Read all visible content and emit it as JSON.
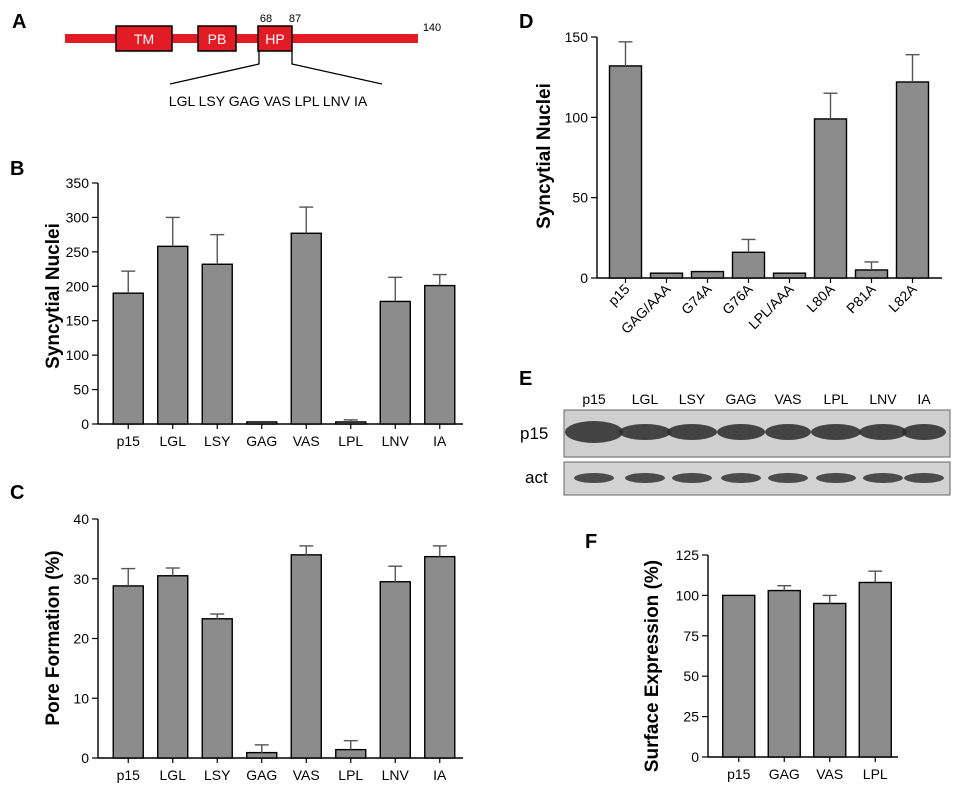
{
  "panels": {
    "A": {
      "letter": "A",
      "domains": [
        {
          "label": "TM",
          "color": "#e21b24"
        },
        {
          "label": "PB",
          "color": "#e21b24"
        },
        {
          "label": "HP",
          "color": "#e21b24"
        }
      ],
      "positions": [
        "68",
        "87",
        "140"
      ],
      "sequence": "LGL LSY GAG VAS LPL LNV IA",
      "line_color": "#e21b24"
    },
    "B": {
      "letter": "B"
    },
    "C": {
      "letter": "C"
    },
    "D": {
      "letter": "D"
    },
    "E": {
      "letter": "E",
      "lanes": [
        "p15",
        "LGL",
        "LSY",
        "GAG",
        "VAS",
        "LPL",
        "LNV",
        "IA"
      ],
      "rows": [
        "p15",
        "act"
      ]
    },
    "F": {
      "letter": "F"
    }
  },
  "chart_data": [
    {
      "id": "B",
      "type": "bar",
      "categories": [
        "p15",
        "LGL",
        "LSY",
        "GAG",
        "VAS",
        "LPL",
        "LNV",
        "IA"
      ],
      "values": [
        190,
        258,
        232,
        3,
        277,
        3,
        178,
        201
      ],
      "errors": [
        32,
        42,
        43,
        0,
        38,
        3,
        35,
        16
      ],
      "ylabel": "Syncytial Nuclei",
      "ylim": [
        0,
        350
      ],
      "yticks": [
        0,
        50,
        100,
        150,
        200,
        250,
        300,
        350
      ],
      "ytick_labels": [
        "0",
        "50",
        "100",
        "150",
        "200",
        "250",
        "300",
        "350"
      ],
      "bar_color": "#8c8c8c",
      "grid": false
    },
    {
      "id": "C",
      "type": "bar",
      "categories": [
        "p15",
        "LGL",
        "LSY",
        "GAG",
        "VAS",
        "LPL",
        "LNV",
        "IA"
      ],
      "values": [
        28.8,
        30.5,
        23.3,
        0.9,
        34.0,
        1.4,
        29.5,
        33.7
      ],
      "errors": [
        2.9,
        1.3,
        0.8,
        1.3,
        1.5,
        1.5,
        2.6,
        1.8
      ],
      "ylabel": "Pore Formation (%)",
      "ylim": [
        0,
        40
      ],
      "yticks": [
        0,
        10,
        20,
        30,
        40
      ],
      "ytick_labels": [
        "0",
        "10",
        "20",
        "30",
        "40"
      ],
      "bar_color": "#8c8c8c",
      "grid": false
    },
    {
      "id": "D",
      "type": "bar",
      "categories": [
        "p15",
        "GAG/AAA",
        "G74A",
        "G76A",
        "LPL/AAA",
        "L80A",
        "P81A",
        "L82A"
      ],
      "values": [
        132,
        3,
        4,
        16,
        3,
        99,
        5,
        122
      ],
      "errors": [
        15,
        0,
        0,
        8,
        0,
        16,
        5,
        17
      ],
      "ylabel": "Syncytial Nuclei",
      "ylim": [
        0,
        150
      ],
      "yticks": [
        0,
        50,
        100,
        150
      ],
      "ytick_labels": [
        "0",
        "50",
        "100",
        "150"
      ],
      "bar_color": "#8c8c8c",
      "grid": false
    },
    {
      "id": "F",
      "type": "bar",
      "categories": [
        "p15",
        "GAG",
        "VAS",
        "LPL"
      ],
      "values": [
        100,
        103,
        95,
        108
      ],
      "errors": [
        0,
        3,
        5,
        7
      ],
      "ylabel": "Surface Expression (%)",
      "ylim": [
        0,
        125
      ],
      "yticks": [
        0,
        25,
        50,
        75,
        100,
        125
      ],
      "ytick_labels": [
        "0",
        "25",
        "50",
        "75",
        "100",
        "125"
      ],
      "bar_color": "#8c8c8c",
      "grid": false
    }
  ]
}
